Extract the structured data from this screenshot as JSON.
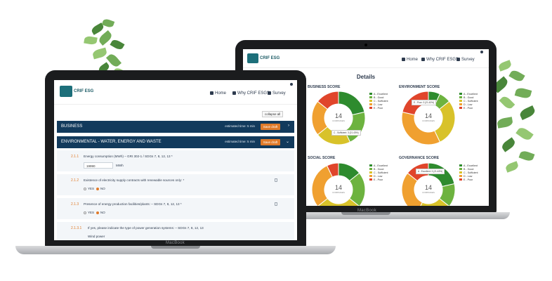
{
  "survey": {
    "brand_name": "CRIF ESG",
    "nav": {
      "home": "Home",
      "why": "Why CRIF ESG?",
      "survey": "Survey"
    },
    "collapse_label": "collapse all",
    "sections": [
      {
        "title": "BUSINESS",
        "estimate": "estimated time: 5 min",
        "save": "Save draft",
        "chevron": "›"
      },
      {
        "title": "ENVIRONMENTAL - WATER, ENERGY AND WASTE",
        "estimate": "estimated time: 5 min",
        "save": "Save draft",
        "chevron": "⌄"
      }
    ],
    "questions": [
      {
        "num": "2.1.1",
        "text": "Energy consumption (MWh) – GRI 302-1 / SDGs 7, 8, 12, 13 *",
        "value": "19990",
        "unit": "MWh"
      },
      {
        "num": "2.1.2",
        "text": "Existence of electricity supply contracts with renewable sources only: *",
        "yes": "YES",
        "no": "NO"
      },
      {
        "num": "2.1.3",
        "text": "Presence of energy production facilities/plants: – SDGs 7, 8, 12, 13 *",
        "yes": "YES",
        "no": "NO"
      },
      {
        "num": "2.1.3.1",
        "text": "If yes, please indicate the type of power generation systems: – SDGs 7, 8, 12, 13",
        "value": "Wind power"
      }
    ],
    "laptop_label": "MacBook"
  },
  "dashboard": {
    "brand_name": "CRIF ESG",
    "nav": {
      "home": "Home",
      "why": "Why CRIF ESG?",
      "survey": "Survey"
    },
    "title": "Details",
    "laptop_label": "MacBook",
    "companies_label": "COMPANIES",
    "legend": [
      "A - Excellent",
      "B - Good",
      "C - Sufficient",
      "D - Low",
      "E - Poor"
    ],
    "colors": [
      "#2e8b2e",
      "#6db33f",
      "#d8c22a",
      "#f0a030",
      "#e0452b"
    ]
  },
  "chart_data": [
    {
      "type": "pie",
      "title": "BUSINESS SCORE",
      "center": "14",
      "categories": [
        "A - Excellent",
        "B - Good",
        "C - Sufficient",
        "D - Low",
        "E - Poor"
      ],
      "values": [
        3,
        3,
        3,
        3,
        2
      ],
      "tooltip": "C - Sufficient: 3 (21.43%)"
    },
    {
      "type": "pie",
      "title": "ENVIRONMENT SCORE",
      "center": "14",
      "categories": [
        "A - Excellent",
        "B - Good",
        "C - Sufficient",
        "D - Low",
        "E - Poor"
      ],
      "values": [
        1,
        1,
        4,
        5,
        3
      ],
      "tooltip": "E - Poor: 3 (21.43%)"
    },
    {
      "type": "pie",
      "title": "SOCIAL SCORE",
      "center": "14",
      "categories": [
        "A - Excellent",
        "B - Good",
        "C - Sufficient",
        "D - Low",
        "E - Poor"
      ],
      "values": [
        2,
        3,
        4,
        4,
        1
      ],
      "tooltip": ""
    },
    {
      "type": "pie",
      "title": "GOVERNANCE SCORE",
      "center": "14",
      "categories": [
        "A - Excellent",
        "B - Good",
        "C - Sufficient",
        "D - Low",
        "E - Poor"
      ],
      "values": [
        3,
        2,
        3,
        4,
        2
      ],
      "tooltip": "A - Excellent: 3 (21.43%)"
    }
  ]
}
